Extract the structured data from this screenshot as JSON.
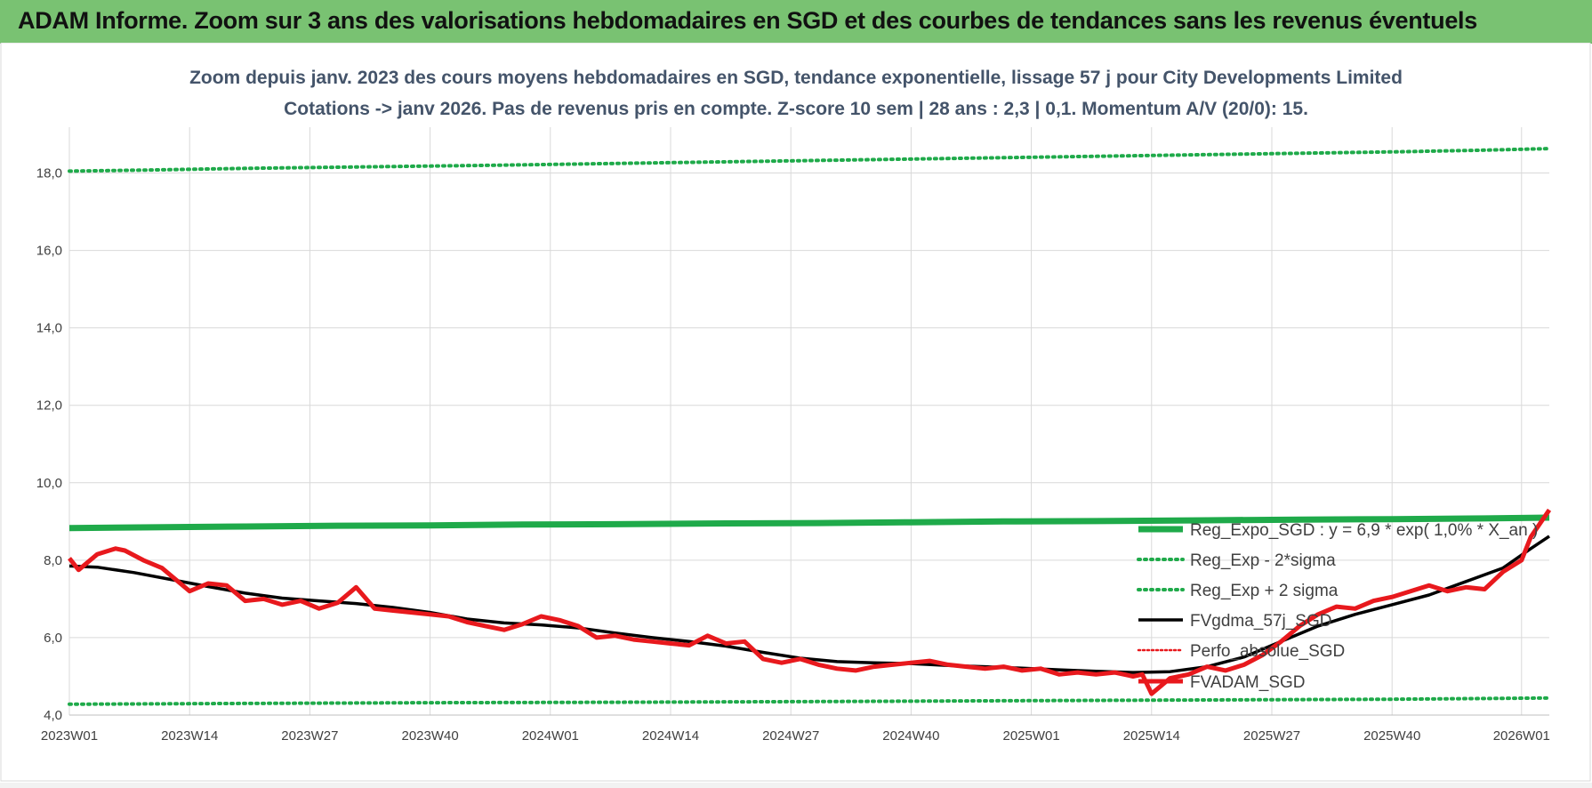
{
  "banner": {
    "title": "ADAM Informe. Zoom sur 3 ans des valorisations hebdomadaires en SGD et des courbes de tendances sans les revenus éventuels"
  },
  "chart_data": {
    "type": "line",
    "title": "Zoom depuis janv. 2023 des cours moyens hebdomadaires en SGD, tendance exponentielle, lissage 57 j pour City Developments Limited",
    "subtitle": "Cotations -> janv 2026. Pas de revenus pris en compte. Z-score 10 sem  | 28 ans : 2,3 | 0,1. Momentum A/V (20/0): 15.",
    "ylim": [
      4.0,
      19.0
    ],
    "y_ticks": [
      "4,0",
      "6,0",
      "8,0",
      "10,0",
      "12,0",
      "14,0",
      "16,0",
      "18,0"
    ],
    "x_ticks": [
      "2023W01",
      "2023W14",
      "2023W27",
      "2023W40",
      "2024W01",
      "2024W14",
      "2024W27",
      "2024W40",
      "2025W01",
      "2025W14",
      "2025W27",
      "2025W40",
      "2026W01"
    ],
    "grid": true,
    "legend_position": "bottom-right",
    "colors": {
      "reg_expo": "#1faa4a",
      "sigma": "#1faa4a",
      "fvgdma": "#000000",
      "perfo": "#e8191d",
      "fvadam": "#e8191d",
      "grid": "#d9d9d9"
    },
    "series": [
      {
        "name": "Reg_Expo_SGD : y = 6,9 * exp( 1,0% * X_an )",
        "style": "thick-solid",
        "x": [
          "2023W01",
          "2023W10",
          "2023W20",
          "2023W30",
          "2023W40",
          "2023W50",
          "2024W08",
          "2024W20",
          "2024W30",
          "2024W40",
          "2024W50",
          "2025W08",
          "2025W20",
          "2025W30",
          "2025W40",
          "2025W50",
          "2026W04"
        ],
        "values": [
          8.83,
          8.85,
          8.87,
          8.89,
          8.9,
          8.92,
          8.93,
          8.95,
          8.96,
          8.98,
          9.0,
          9.01,
          9.03,
          9.05,
          9.06,
          9.08,
          9.1
        ]
      },
      {
        "name": "Reg_Exp - 2*sigma",
        "style": "dotted",
        "x": [
          "2023W01",
          "2023W20",
          "2023W40",
          "2024W08",
          "2024W30",
          "2024W50",
          "2025W20",
          "2025W40",
          "2026W04"
        ],
        "values": [
          4.28,
          4.3,
          4.32,
          4.33,
          4.35,
          4.37,
          4.39,
          4.41,
          4.44
        ]
      },
      {
        "name": "Reg_Exp + 2 sigma",
        "style": "dotted",
        "x": [
          "2023W01",
          "2023W10",
          "2023W20",
          "2023W30",
          "2023W40",
          "2023W47",
          "2025W41",
          "2025W50",
          "2026W04"
        ],
        "values": [
          18.05,
          18.08,
          18.12,
          18.15,
          18.18,
          18.2,
          18.55,
          18.59,
          18.63
        ]
      },
      {
        "name": "FVgdma_57j_SGD",
        "style": "solid",
        "x": [
          "2023W01",
          "2023W04",
          "2023W08",
          "2023W12",
          "2023W16",
          "2023W20",
          "2023W24",
          "2023W28",
          "2023W32",
          "2023W36",
          "2023W40",
          "2023W44",
          "2023W48",
          "2023W52",
          "2024W04",
          "2024W08",
          "2024W12",
          "2024W16",
          "2024W20",
          "2024W24",
          "2024W28",
          "2024W32",
          "2024W36",
          "2024W40",
          "2024W44",
          "2024W48",
          "2024W52",
          "2025W04",
          "2025W08",
          "2025W12",
          "2025W16",
          "2025W20",
          "2025W24",
          "2025W28",
          "2025W32",
          "2025W36",
          "2025W40",
          "2025W44",
          "2025W48",
          "2025W52",
          "2026W02",
          "2026W04"
        ],
        "values": [
          7.85,
          7.82,
          7.68,
          7.5,
          7.32,
          7.15,
          7.02,
          6.95,
          6.88,
          6.78,
          6.65,
          6.48,
          6.38,
          6.33,
          6.25,
          6.12,
          6.0,
          5.9,
          5.78,
          5.62,
          5.47,
          5.38,
          5.35,
          5.33,
          5.28,
          5.25,
          5.21,
          5.17,
          5.13,
          5.1,
          5.12,
          5.25,
          5.5,
          5.9,
          6.3,
          6.6,
          6.85,
          7.1,
          7.45,
          7.8,
          8.3,
          8.62
        ]
      },
      {
        "name": "Perfo_absolue_SGD",
        "style": "dotted",
        "x": [],
        "values": []
      },
      {
        "name": "FVADAM_SGD",
        "style": "thick-solid",
        "x": [
          "2023W01",
          "2023W02",
          "2023W04",
          "2023W06",
          "2023W07",
          "2023W09",
          "2023W11",
          "2023W12",
          "2023W14",
          "2023W16",
          "2023W18",
          "2023W20",
          "2023W22",
          "2023W24",
          "2023W26",
          "2023W28",
          "2023W30",
          "2023W32",
          "2023W34",
          "2023W36",
          "2023W38",
          "2023W40",
          "2023W42",
          "2023W44",
          "2023W46",
          "2023W48",
          "2023W50",
          "2023W52",
          "2024W02",
          "2024W04",
          "2024W06",
          "2024W08",
          "2024W10",
          "2024W12",
          "2024W14",
          "2024W16",
          "2024W18",
          "2024W20",
          "2024W22",
          "2024W24",
          "2024W26",
          "2024W28",
          "2024W30",
          "2024W32",
          "2024W34",
          "2024W36",
          "2024W38",
          "2024W40",
          "2024W42",
          "2024W44",
          "2024W46",
          "2024W48",
          "2024W50",
          "2024W52",
          "2025W02",
          "2025W04",
          "2025W06",
          "2025W08",
          "2025W10",
          "2025W12",
          "2025W13",
          "2025W14",
          "2025W16",
          "2025W18",
          "2025W20",
          "2025W22",
          "2025W24",
          "2025W26",
          "2025W28",
          "2025W30",
          "2025W32",
          "2025W34",
          "2025W36",
          "2025W38",
          "2025W40",
          "2025W42",
          "2025W44",
          "2025W46",
          "2025W48",
          "2025W50",
          "2025W52",
          "2026W01",
          "2026W02",
          "2026W04"
        ],
        "values": [
          8.05,
          7.75,
          8.15,
          8.3,
          8.25,
          8.0,
          7.8,
          7.6,
          7.2,
          7.4,
          7.35,
          6.95,
          7.0,
          6.85,
          6.95,
          6.75,
          6.9,
          7.3,
          6.75,
          6.7,
          6.65,
          6.6,
          6.55,
          6.4,
          6.3,
          6.2,
          6.35,
          6.55,
          6.45,
          6.3,
          6.0,
          6.05,
          5.95,
          5.9,
          5.85,
          5.8,
          6.05,
          5.85,
          5.9,
          5.45,
          5.35,
          5.45,
          5.3,
          5.2,
          5.15,
          5.25,
          5.3,
          5.35,
          5.4,
          5.3,
          5.25,
          5.2,
          5.25,
          5.15,
          5.2,
          5.05,
          5.1,
          5.05,
          5.1,
          5.0,
          5.05,
          4.55,
          4.95,
          5.05,
          5.25,
          5.15,
          5.3,
          5.55,
          5.9,
          6.3,
          6.6,
          6.8,
          6.75,
          6.95,
          7.05,
          7.2,
          7.35,
          7.2,
          7.3,
          7.25,
          7.7,
          8.0,
          8.6,
          9.3
        ]
      }
    ]
  }
}
